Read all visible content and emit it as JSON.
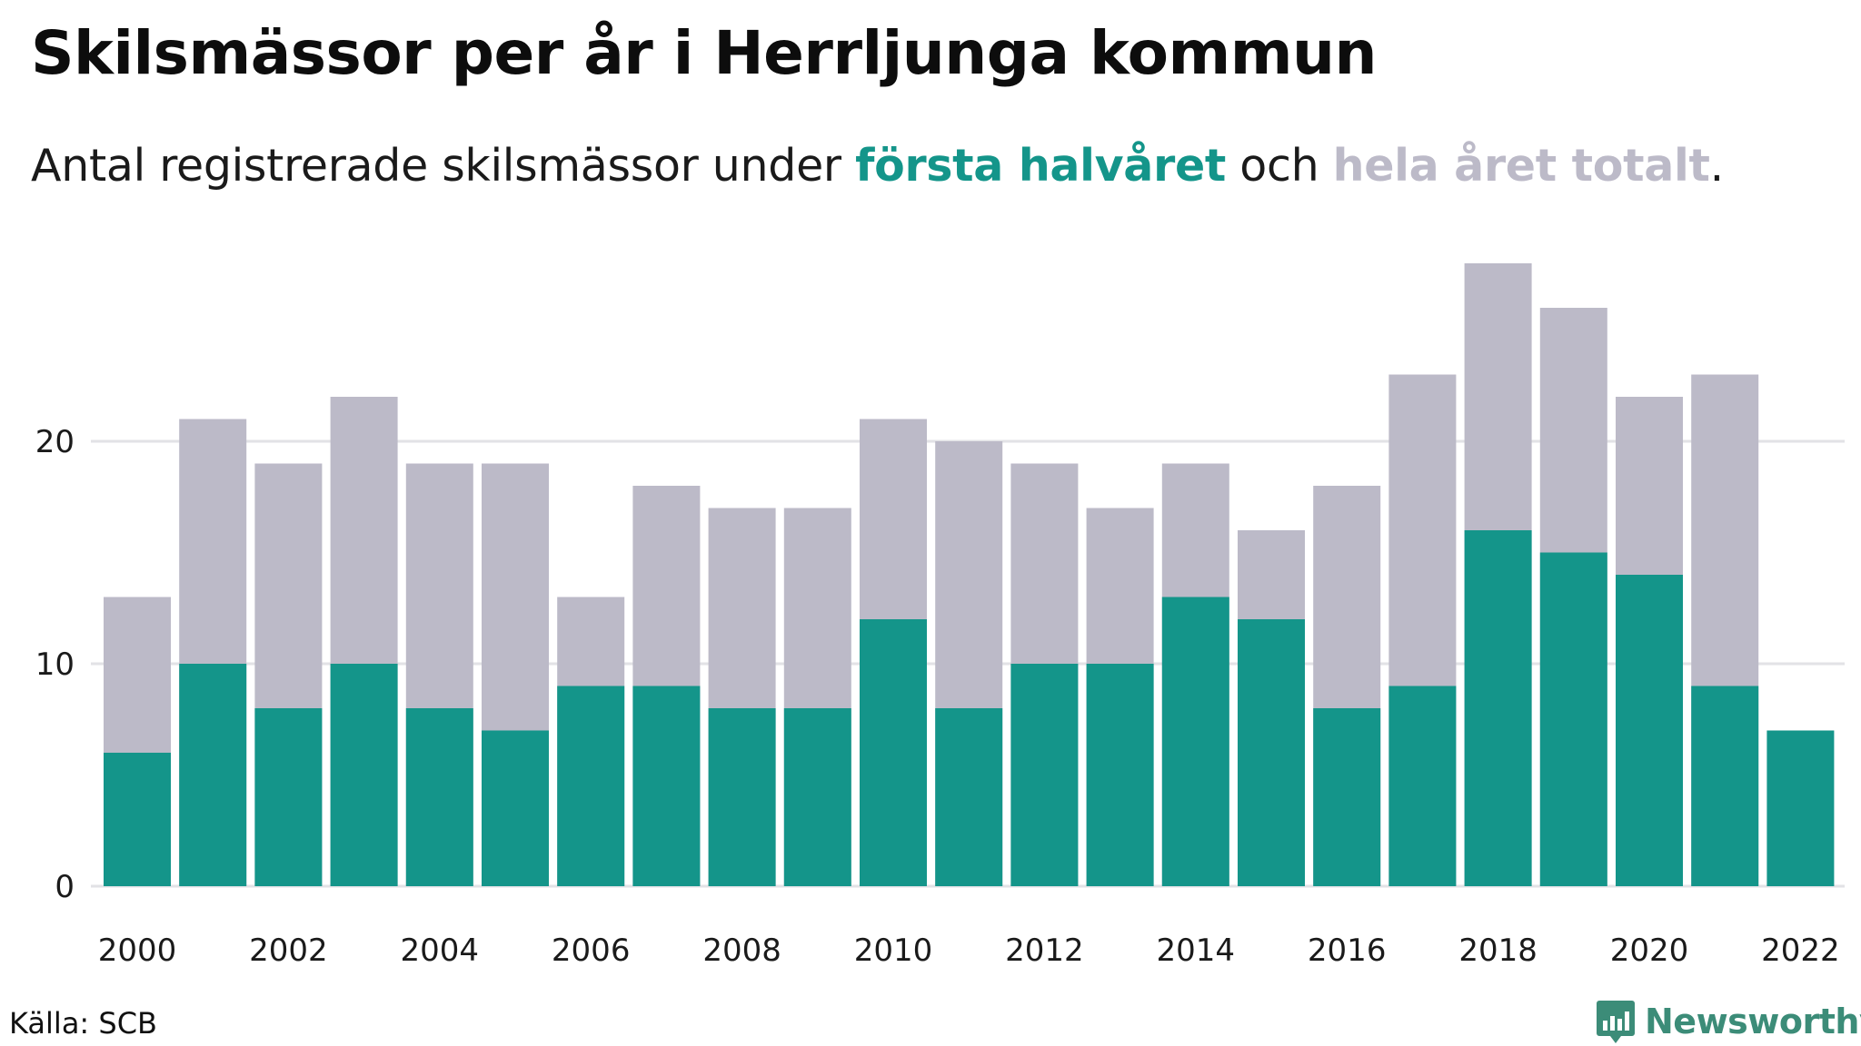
{
  "header": {
    "title": "Skilsmässor per år i Herrljunga kommun",
    "subtitle_prefix": "Antal registrerade skilsmässor under ",
    "subtitle_h1": "första halvåret",
    "subtitle_mid": " och ",
    "subtitle_h2": "hela året totalt",
    "subtitle_suffix": "."
  },
  "footer": {
    "source": "Källa: SCB",
    "brand": "Newsworthy",
    "brand_icon": "bar-chart-speech-bubble-icon"
  },
  "colors": {
    "first_half": "#14958a",
    "full_year": "#bcbac8",
    "grid": "#e2e2e6",
    "brand": "#3c8c78"
  },
  "chart_data": {
    "type": "bar",
    "stacking": "overlay",
    "categories": [
      2000,
      2001,
      2002,
      2003,
      2004,
      2005,
      2006,
      2007,
      2008,
      2009,
      2010,
      2011,
      2012,
      2013,
      2014,
      2015,
      2016,
      2017,
      2018,
      2019,
      2020,
      2021,
      2022
    ],
    "series": [
      {
        "name": "hela året totalt",
        "color": "#bcbac8",
        "values": [
          13,
          21,
          19,
          22,
          19,
          19,
          13,
          18,
          17,
          17,
          21,
          20,
          19,
          17,
          19,
          16,
          18,
          23,
          28,
          26,
          22,
          23,
          null
        ]
      },
      {
        "name": "första halvåret",
        "color": "#14958a",
        "values": [
          6,
          10,
          8,
          10,
          8,
          7,
          9,
          9,
          8,
          8,
          12,
          8,
          10,
          10,
          13,
          12,
          8,
          9,
          16,
          15,
          14,
          9,
          7
        ]
      }
    ],
    "yticks": [
      0,
      10,
      20
    ],
    "xticks": [
      2000,
      2002,
      2004,
      2006,
      2008,
      2010,
      2012,
      2014,
      2016,
      2018,
      2020,
      2022
    ],
    "ylim": [
      0,
      28
    ],
    "grid": true,
    "legend": "in-subtitle"
  }
}
